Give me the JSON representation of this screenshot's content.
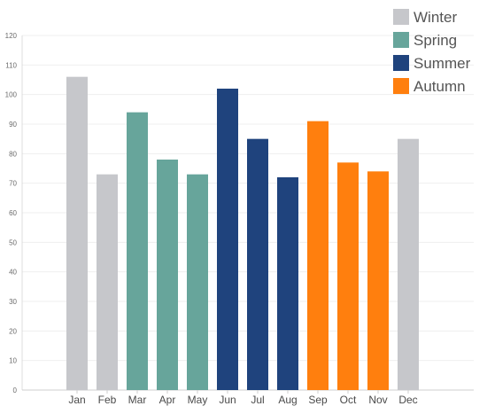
{
  "chart_data": {
    "type": "bar",
    "categories": [
      "Jan",
      "Feb",
      "Mar",
      "Apr",
      "May",
      "Jun",
      "Jul",
      "Aug",
      "Sep",
      "Oct",
      "Nov",
      "Dec"
    ],
    "values": [
      106,
      73,
      94,
      78,
      73,
      102,
      85,
      72,
      91,
      77,
      74,
      85
    ],
    "bar_groups": [
      "Winter",
      "Winter",
      "Spring",
      "Spring",
      "Spring",
      "Summer",
      "Summer",
      "Summer",
      "Autumn",
      "Autumn",
      "Autumn",
      "Winter"
    ],
    "legend": [
      {
        "name": "Winter",
        "color": "#c6c7cb"
      },
      {
        "name": "Spring",
        "color": "#67a59b"
      },
      {
        "name": "Summer",
        "color": "#1f437d"
      },
      {
        "name": "Autumn",
        "color": "#ff7f0e"
      }
    ],
    "y_ticks": [
      0,
      10,
      20,
      30,
      40,
      50,
      60,
      70,
      80,
      90,
      100,
      110,
      120
    ],
    "ylim": [
      0,
      120
    ],
    "grid": true,
    "legend_position": "top-right",
    "title": "",
    "xlabel": "",
    "ylabel": ""
  }
}
